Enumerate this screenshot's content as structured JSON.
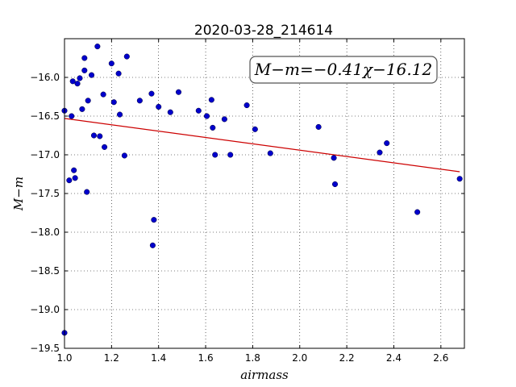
{
  "chart_data": {
    "type": "scatter",
    "title": "2020-03-28_214614",
    "xlabel": "airmass",
    "ylabel": "M−m",
    "xlim": [
      1.0,
      2.7
    ],
    "ylim": [
      -19.5,
      -15.5
    ],
    "y_inverted": true,
    "grid": true,
    "x_ticks": [
      1.0,
      1.2,
      1.4,
      1.6,
      1.8,
      2.0,
      2.2,
      2.4,
      2.6
    ],
    "x_tick_labels": [
      "1.0",
      "1.2",
      "1.4",
      "1.6",
      "1.8",
      "2.0",
      "2.2",
      "2.4",
      "2.6"
    ],
    "y_ticks": [
      -16.0,
      -16.5,
      -17.0,
      -17.5,
      -18.0,
      -18.5,
      -19.0,
      -19.5
    ],
    "y_tick_labels": [
      "−16.0",
      "−16.5",
      "−17.0",
      "−17.5",
      "−18.0",
      "−18.5",
      "−19.0",
      "−19.5"
    ],
    "point_color": "#0000cc",
    "fit_color": "#cc0000",
    "annotation": "M−m=−0.41χ−16.12",
    "fit": {
      "slope": -0.41,
      "intercept": -16.12
    },
    "points": [
      [
        1.0,
        -19.3
      ],
      [
        1.0,
        -16.43
      ],
      [
        1.02,
        -17.33
      ],
      [
        1.03,
        -16.5
      ],
      [
        1.035,
        -16.05
      ],
      [
        1.04,
        -17.2
      ],
      [
        1.045,
        -17.3
      ],
      [
        1.055,
        -16.08
      ],
      [
        1.065,
        -16.01
      ],
      [
        1.075,
        -16.41
      ],
      [
        1.085,
        -15.91
      ],
      [
        1.085,
        -15.75
      ],
      [
        1.095,
        -17.48
      ],
      [
        1.1,
        -16.3
      ],
      [
        1.115,
        -15.97
      ],
      [
        1.125,
        -16.75
      ],
      [
        1.14,
        -15.6
      ],
      [
        1.15,
        -16.76
      ],
      [
        1.165,
        -16.22
      ],
      [
        1.17,
        -16.9
      ],
      [
        1.2,
        -15.82
      ],
      [
        1.21,
        -16.32
      ],
      [
        1.23,
        -15.95
      ],
      [
        1.235,
        -16.48
      ],
      [
        1.255,
        -17.01
      ],
      [
        1.265,
        -15.73
      ],
      [
        1.32,
        -16.3
      ],
      [
        1.37,
        -16.21
      ],
      [
        1.375,
        -18.17
      ],
      [
        1.38,
        -17.84
      ],
      [
        1.4,
        -16.38
      ],
      [
        1.45,
        -16.45
      ],
      [
        1.485,
        -16.19
      ],
      [
        1.57,
        -16.43
      ],
      [
        1.605,
        -16.5
      ],
      [
        1.625,
        -16.29
      ],
      [
        1.63,
        -16.65
      ],
      [
        1.64,
        -17.0
      ],
      [
        1.68,
        -16.54
      ],
      [
        1.705,
        -17.0
      ],
      [
        1.775,
        -16.36
      ],
      [
        1.81,
        -16.67
      ],
      [
        1.875,
        -16.98
      ],
      [
        2.08,
        -16.64
      ],
      [
        2.145,
        -17.04
      ],
      [
        2.15,
        -17.38
      ],
      [
        2.34,
        -16.97
      ],
      [
        2.37,
        -16.85
      ],
      [
        2.5,
        -17.74
      ],
      [
        2.68,
        -17.31
      ]
    ]
  }
}
